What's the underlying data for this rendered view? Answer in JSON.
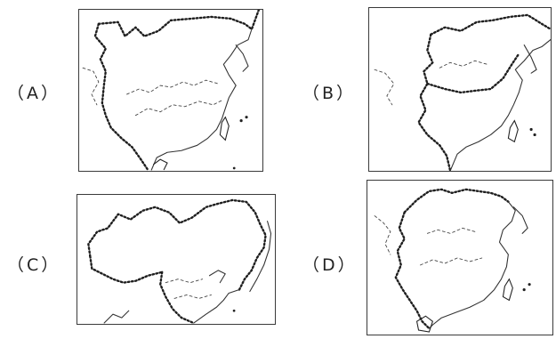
{
  "options": [
    {
      "id": "A",
      "label": "（A）"
    },
    {
      "id": "B",
      "label": "（B）"
    },
    {
      "id": "C",
      "label": "（C）"
    },
    {
      "id": "D",
      "label": "（D）"
    }
  ],
  "colors": {
    "ink": "#1e1e1e",
    "frame": "#3a3a3a",
    "background": "#ffffff"
  },
  "icons": {
    "border": "dotted-border-line",
    "coast": "coastline",
    "river": "dashed-river"
  }
}
